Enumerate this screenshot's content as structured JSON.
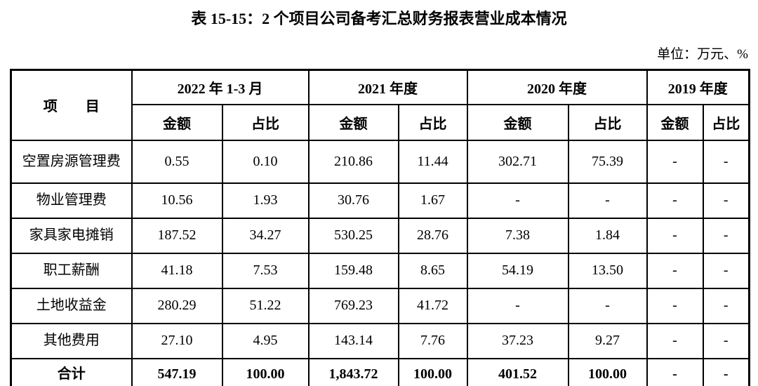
{
  "title": "表 15-15：2 个项目公司备考汇总财务报表营业成本情况",
  "unit_note": "单位：万元、%",
  "table": {
    "item_header": "项　　目",
    "col_groups": [
      {
        "label": "2022 年 1-3 月"
      },
      {
        "label": "2021 年度"
      },
      {
        "label": "2020 年度"
      },
      {
        "label": "2019 年度"
      }
    ],
    "sub_headers": {
      "amount": "金额",
      "ratio": "占比"
    },
    "rows": [
      {
        "item": "空置房源管理费",
        "values": [
          "0.55",
          "0.10",
          "210.86",
          "11.44",
          "302.71",
          "75.39",
          "-",
          "-"
        ]
      },
      {
        "item": "物业管理费",
        "values": [
          "10.56",
          "1.93",
          "30.76",
          "1.67",
          "-",
          "-",
          "-",
          "-"
        ]
      },
      {
        "item": "家具家电摊销",
        "values": [
          "187.52",
          "34.27",
          "530.25",
          "28.76",
          "7.38",
          "1.84",
          "-",
          "-"
        ]
      },
      {
        "item": "职工薪酬",
        "values": [
          "41.18",
          "7.53",
          "159.48",
          "8.65",
          "54.19",
          "13.50",
          "-",
          "-"
        ]
      },
      {
        "item": "土地收益金",
        "values": [
          "280.29",
          "51.22",
          "769.23",
          "41.72",
          "-",
          "-",
          "-",
          "-"
        ]
      },
      {
        "item": "其他费用",
        "values": [
          "27.10",
          "4.95",
          "143.14",
          "7.76",
          "37.23",
          "9.27",
          "-",
          "-"
        ]
      }
    ],
    "total_row": {
      "item": "合计",
      "values": [
        "547.19",
        "100.00",
        "1,843.72",
        "100.00",
        "401.52",
        "100.00",
        "-",
        "-"
      ]
    }
  }
}
